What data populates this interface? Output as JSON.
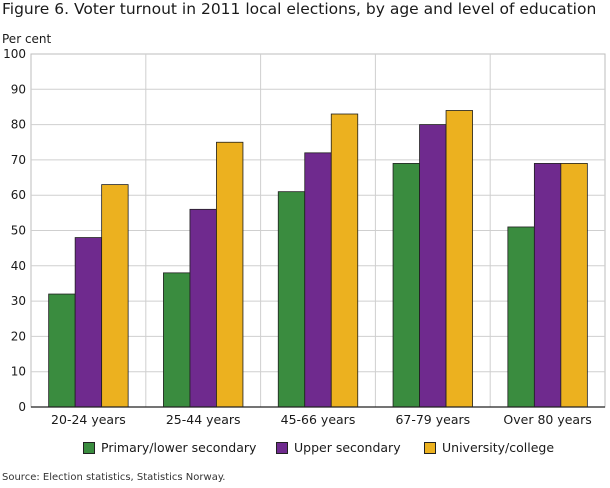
{
  "title": "Figure 6. Voter turnout in 2011 local elections, by age and level of education",
  "source": "Source: Election statistics, Statistics Norway.",
  "chart_data": {
    "type": "bar",
    "title": "Figure 6. Voter turnout in 2011 local elections, by age and level of education",
    "xlabel": "",
    "ylabel": "Per cent",
    "ylim": [
      0,
      100
    ],
    "yticks": [
      0,
      10,
      20,
      30,
      40,
      50,
      60,
      70,
      80,
      90,
      100
    ],
    "grid": true,
    "legend_position": "bottom",
    "categories": [
      "20-24 years",
      "25-44 years",
      "45-66 years",
      "67-79 years",
      "Over 80 years"
    ],
    "series": [
      {
        "name": "Primary/lower secondary",
        "color": "#3a8c3f",
        "values": [
          32,
          38,
          61,
          69,
          51
        ]
      },
      {
        "name": "Upper secondary",
        "color": "#6f2a8e",
        "values": [
          48,
          56,
          72,
          80,
          69
        ]
      },
      {
        "name": "University/college",
        "color": "#ecb11f",
        "values": [
          63,
          75,
          83,
          84,
          69
        ]
      }
    ]
  }
}
